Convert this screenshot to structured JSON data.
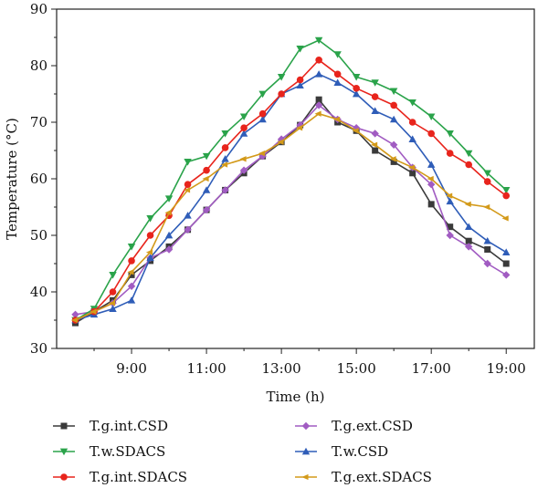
{
  "chart_data": {
    "type": "line",
    "xlabel": "Time (h)",
    "ylabel": "Temperature (°C)",
    "ylim": [
      30,
      90
    ],
    "xlim": [
      7.0,
      19.75
    ],
    "x_ticks": [
      9,
      11,
      13,
      15,
      17,
      19
    ],
    "x_tick_labels": [
      "9:00",
      "11:00",
      "13:00",
      "15:00",
      "17:00",
      "19:00"
    ],
    "y_ticks": [
      30,
      40,
      50,
      60,
      70,
      80,
      90
    ],
    "y_tick_labels": [
      "30",
      "40",
      "50",
      "60",
      "70",
      "80",
      "90"
    ],
    "grid": false,
    "legend_position": "bottom",
    "x": [
      7.5,
      8.0,
      8.5,
      9.0,
      9.5,
      10.0,
      10.5,
      11.0,
      11.5,
      12.0,
      12.5,
      13.0,
      13.5,
      14.0,
      14.5,
      15.0,
      15.5,
      16.0,
      16.5,
      17.0,
      17.5,
      18.0,
      18.5,
      19.0
    ],
    "series": [
      {
        "name": "T.g.int.CSD",
        "color": "#3a3a3a",
        "marker": "square",
        "values": [
          34.5,
          36.5,
          38.5,
          43.0,
          45.5,
          48.0,
          51.0,
          54.5,
          58.0,
          61.0,
          64.0,
          66.5,
          69.5,
          74.0,
          70.0,
          68.5,
          65.0,
          63.0,
          61.0,
          55.5,
          51.5,
          49.0,
          47.5,
          45.0
        ]
      },
      {
        "name": "T.g.ext.CSD",
        "color": "#a15cc2",
        "marker": "diamond",
        "values": [
          36.0,
          36.5,
          38.0,
          41.0,
          46.0,
          47.5,
          51.0,
          54.5,
          58.0,
          61.5,
          64.0,
          67.0,
          69.5,
          73.0,
          70.5,
          69.0,
          68.0,
          66.0,
          62.0,
          59.0,
          50.0,
          48.0,
          45.0,
          43.0
        ]
      },
      {
        "name": "T.w.SDACS",
        "color": "#2aa34a",
        "marker": "triangle-down",
        "values": [
          35.0,
          37.0,
          43.0,
          48.0,
          53.0,
          56.5,
          63.0,
          64.0,
          68.0,
          71.0,
          75.0,
          78.0,
          83.0,
          84.5,
          82.0,
          78.0,
          77.0,
          75.5,
          73.5,
          71.0,
          68.0,
          64.5,
          61.0,
          58.0
        ]
      },
      {
        "name": "T.w.CSD",
        "color": "#2f5db8",
        "marker": "triangle-up",
        "values": [
          35.0,
          36.0,
          37.0,
          38.5,
          46.0,
          50.0,
          53.5,
          58.0,
          63.5,
          68.0,
          70.5,
          75.0,
          76.5,
          78.5,
          77.0,
          75.0,
          72.0,
          70.5,
          67.0,
          62.5,
          56.0,
          51.5,
          49.0,
          47.0
        ]
      },
      {
        "name": "T.g.int.SDACS",
        "color": "#e8241c",
        "marker": "circle",
        "values": [
          35.0,
          36.5,
          40.0,
          45.5,
          50.0,
          53.5,
          59.0,
          61.5,
          65.5,
          69.0,
          71.5,
          75.0,
          77.5,
          81.0,
          78.5,
          76.0,
          74.5,
          73.0,
          70.0,
          68.0,
          64.5,
          62.5,
          59.5,
          57.0
        ]
      },
      {
        "name": "T.g.ext.SDACS",
        "color": "#d39a1a",
        "marker": "diamond-left",
        "values": [
          35.0,
          36.5,
          38.0,
          43.5,
          47.0,
          54.0,
          58.0,
          60.0,
          62.5,
          63.5,
          64.5,
          66.5,
          69.0,
          71.5,
          70.5,
          68.5,
          66.0,
          63.5,
          62.0,
          60.0,
          57.0,
          55.5,
          55.0,
          53.0
        ]
      }
    ],
    "legend_order": [
      "T.g.int.CSD",
      "T.g.ext.CSD",
      "T.w.SDACS",
      "T.w.CSD",
      "T.g.int.SDACS",
      "T.g.ext.SDACS"
    ]
  }
}
